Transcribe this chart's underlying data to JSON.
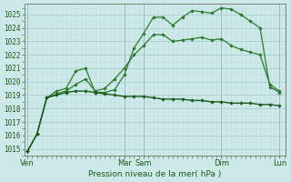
{
  "background_color": "#cde8e8",
  "grid_color_major": "#aacccc",
  "grid_color_minor": "#c0dede",
  "line_color_dark": "#1a5c1a",
  "line_color_mid": "#2d7a2d",
  "title": "Pression niveau de la mer( hPa )",
  "ylim": [
    1014.5,
    1025.8
  ],
  "yticks": [
    1015,
    1016,
    1017,
    1018,
    1019,
    1020,
    1021,
    1022,
    1023,
    1024,
    1025
  ],
  "xtick_labels": [
    "Ven",
    "Mar",
    "Sam",
    "Dim",
    "Lun"
  ],
  "xtick_positions": [
    0,
    5,
    6,
    10,
    13
  ],
  "vline_positions": [
    0,
    5,
    6,
    10,
    13
  ],
  "total_hours": 13,
  "line1_x": [
    0,
    0.5,
    1.0,
    1.5,
    2.0,
    2.5,
    3.0,
    3.5,
    4.0,
    4.5,
    5.0,
    5.5,
    6.0,
    6.5,
    7.0,
    7.5,
    8.0,
    8.5,
    9.0,
    9.5,
    10.0,
    10.5,
    11.0,
    11.5,
    12.0,
    12.5,
    13.0
  ],
  "line1_y": [
    1014.8,
    1016.1,
    1018.8,
    1019.3,
    1019.5,
    1020.8,
    1021.0,
    1019.2,
    1019.2,
    1019.4,
    1020.5,
    1022.5,
    1023.6,
    1024.8,
    1024.8,
    1024.2,
    1024.8,
    1025.3,
    1025.2,
    1025.1,
    1025.5,
    1025.4,
    1025.0,
    1024.5,
    1024.0,
    1019.6,
    1019.2
  ],
  "line2_x": [
    0,
    0.5,
    1.0,
    1.5,
    2.0,
    2.5,
    3.0,
    3.5,
    4.0,
    4.5,
    5.0,
    5.5,
    6.0,
    6.5,
    7.0,
    7.5,
    8.0,
    8.5,
    9.0,
    9.5,
    10.0,
    10.5,
    11.0,
    11.5,
    12.0,
    12.5,
    13.0
  ],
  "line2_y": [
    1014.8,
    1016.1,
    1018.8,
    1019.0,
    1019.2,
    1019.3,
    1019.3,
    1019.2,
    1019.1,
    1019.0,
    1018.9,
    1018.9,
    1018.9,
    1018.8,
    1018.7,
    1018.7,
    1018.7,
    1018.6,
    1018.6,
    1018.5,
    1018.5,
    1018.4,
    1018.4,
    1018.4,
    1018.3,
    1018.3,
    1018.2
  ],
  "line3_x": [
    0,
    0.5,
    1.0,
    1.5,
    2.0,
    2.5,
    3.0,
    3.5,
    4.0,
    4.5,
    5.0,
    5.5,
    6.0,
    6.5,
    7.0,
    7.5,
    8.0,
    8.5,
    9.0,
    9.5,
    10.0,
    10.5,
    11.0,
    11.5,
    12.0,
    12.5,
    13.0
  ],
  "line3_y": [
    1014.8,
    1016.1,
    1018.8,
    1019.1,
    1019.3,
    1019.8,
    1020.2,
    1019.3,
    1019.5,
    1020.2,
    1021.0,
    1022.0,
    1022.7,
    1023.5,
    1023.5,
    1023.0,
    1023.1,
    1023.2,
    1023.3,
    1023.1,
    1023.2,
    1022.7,
    1022.4,
    1022.2,
    1022.0,
    1019.8,
    1019.3
  ]
}
